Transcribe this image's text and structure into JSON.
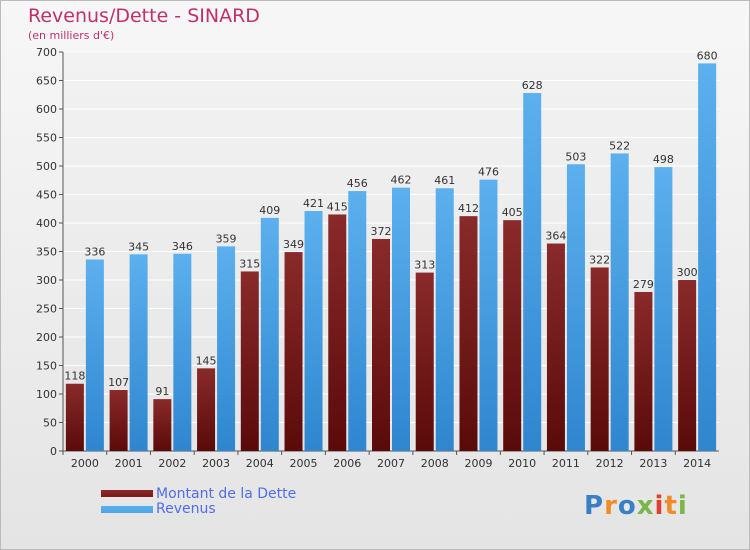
{
  "title": "Revenus/Dette - SINARD",
  "subtitle": "(en milliers d'€)",
  "colors": {
    "title": "#c0306e",
    "debt_bar": "#7a1a1a",
    "revenue_bar": "#4da3e6",
    "legend_text": "#4f6ee8"
  },
  "legend": {
    "debt_label": "Montant de la Dette",
    "revenue_label": "Revenus"
  },
  "logo": {
    "text": "Proxiti",
    "letter_colors": [
      "#3a7ec8",
      "#f28c28",
      "#3a7ec8",
      "#7ab648",
      "#e0402f",
      "#f28c28",
      "#7ab648"
    ]
  },
  "chart_data": {
    "type": "bar",
    "title": "Revenus/Dette - SINARD",
    "subtitle": "(en milliers d'€)",
    "categories": [
      "2000",
      "2001",
      "2002",
      "2003",
      "2004",
      "2005",
      "2006",
      "2007",
      "2008",
      "2009",
      "2010",
      "2011",
      "2012",
      "2013",
      "2014"
    ],
    "series": [
      {
        "name": "Montant de la Dette",
        "values": [
          118,
          107,
          91,
          145,
          315,
          349,
          415,
          372,
          313,
          412,
          405,
          364,
          322,
          279,
          300
        ]
      },
      {
        "name": "Revenus",
        "values": [
          336,
          345,
          346,
          359,
          409,
          421,
          456,
          462,
          461,
          476,
          628,
          503,
          522,
          498,
          680
        ]
      }
    ],
    "ylim": [
      0,
      700
    ],
    "yticks": [
      0,
      50,
      100,
      150,
      200,
      250,
      300,
      350,
      400,
      450,
      500,
      550,
      600,
      650,
      700
    ],
    "grid": true,
    "legend_position": "bottom-left"
  }
}
